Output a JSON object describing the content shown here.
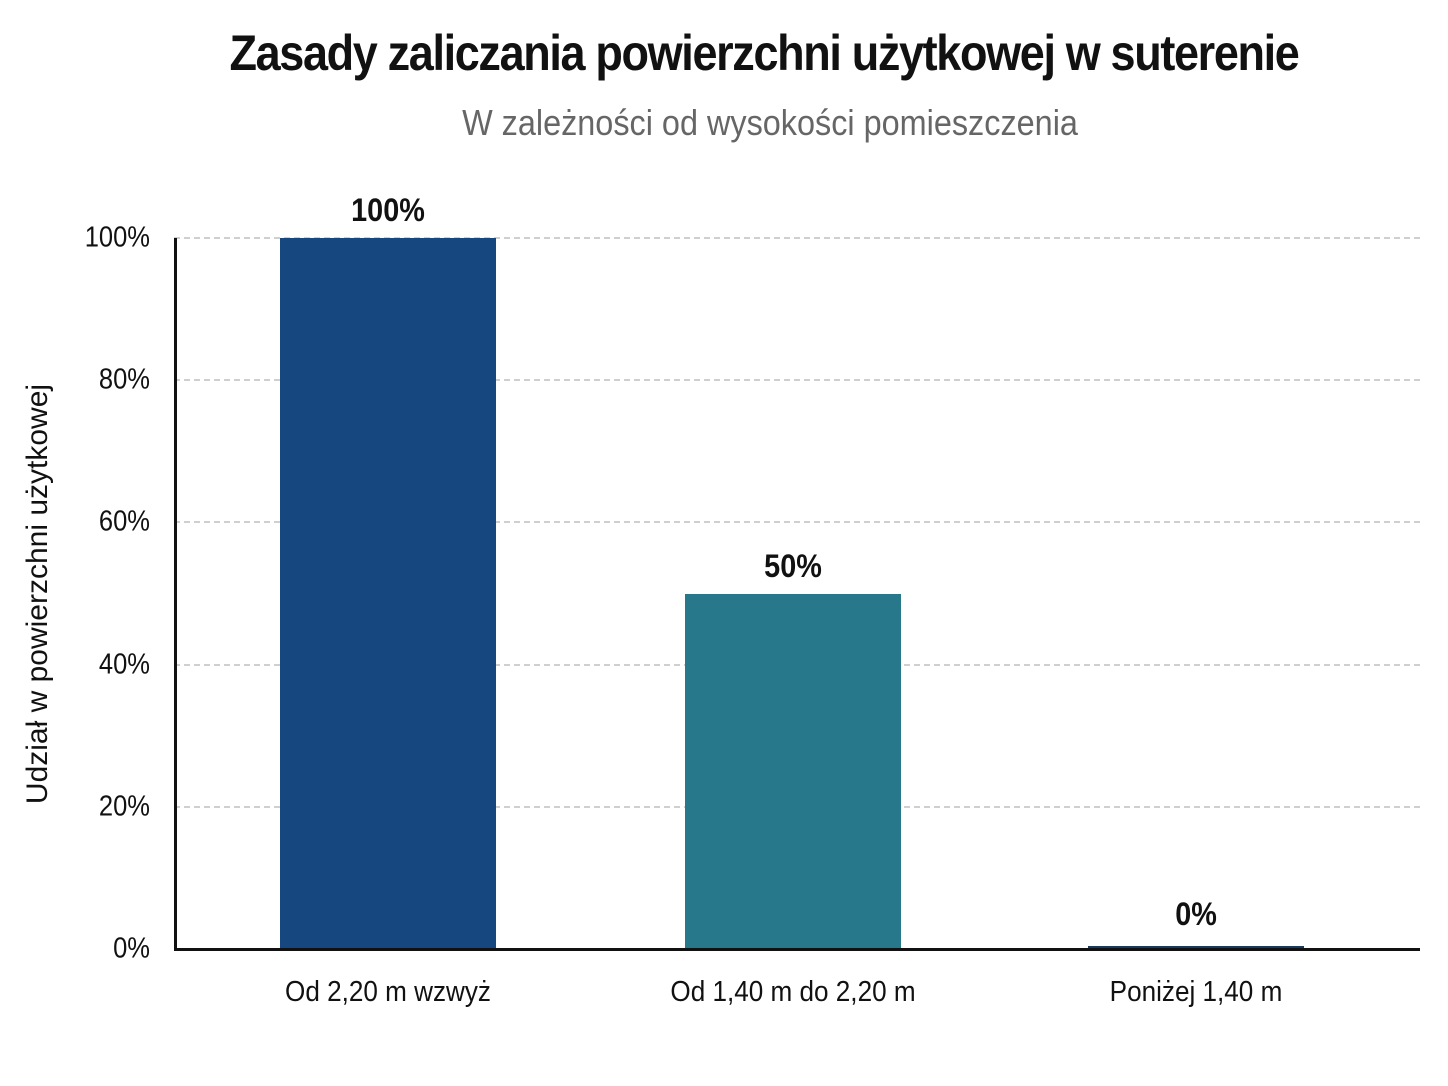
{
  "chart_data": {
    "type": "bar",
    "title": "Zasady zaliczania powierzchni użytkowej w suterenie",
    "subtitle": "W zależności od wysokości pomieszczenia",
    "xlabel": "",
    "ylabel": "Udział w powierzchni użytkowej",
    "categories": [
      "Od 2,20 m wzwyż",
      "Od 1,40 m do 2,20 m",
      "Poniżej 1,40 m"
    ],
    "values": [
      100,
      50,
      0
    ],
    "value_labels": [
      "100%",
      "50%",
      "0%"
    ],
    "colors": [
      "#17477F",
      "#27788A",
      "#1A3A5E"
    ],
    "ylim": [
      0,
      100
    ],
    "yticks": [
      0,
      20,
      40,
      60,
      80,
      100
    ],
    "ytick_labels": [
      "0%",
      "20%",
      "40%",
      "60%",
      "80%",
      "100%"
    ],
    "grid": true,
    "grid_style": "dashed horizontal",
    "legend": null
  }
}
